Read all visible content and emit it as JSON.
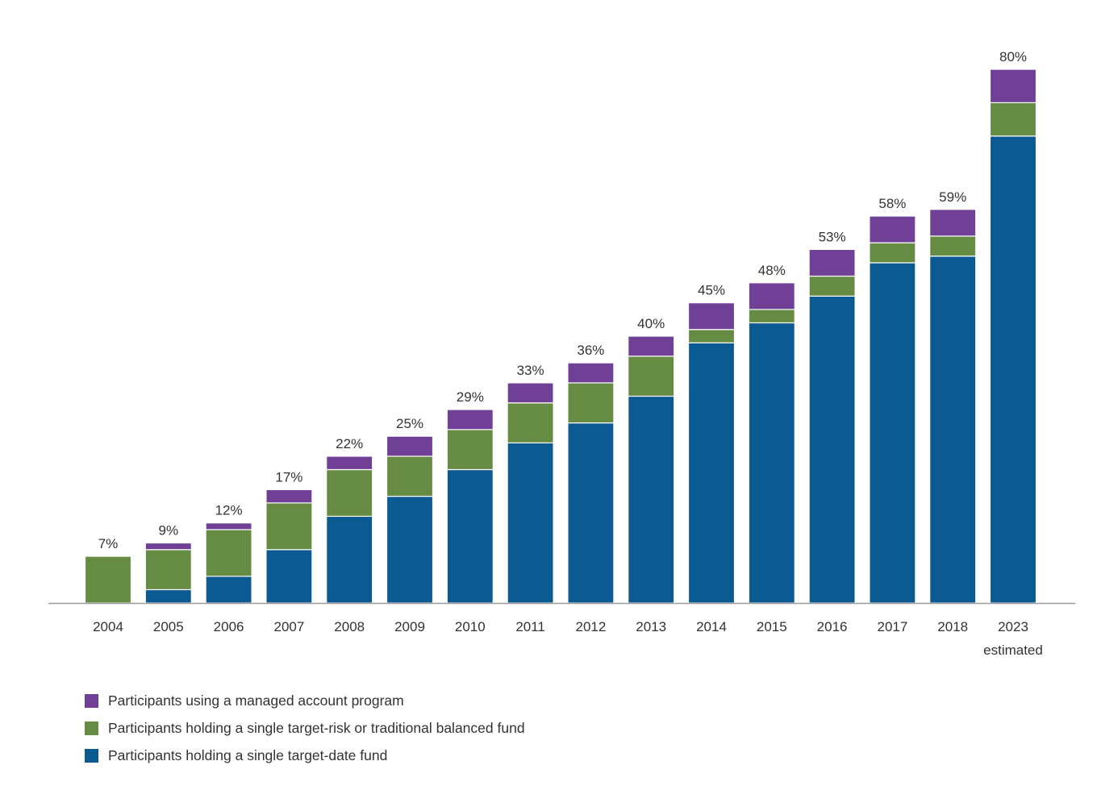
{
  "chart_data": {
    "type": "bar",
    "stacked": true,
    "categories": [
      "2004",
      "2005",
      "2006",
      "2007",
      "2008",
      "2009",
      "2010",
      "2011",
      "2012",
      "2013",
      "2014",
      "2015",
      "2016",
      "2017",
      "2018",
      "2023"
    ],
    "category_sublabels": [
      "",
      "",
      "",
      "",
      "",
      "",
      "",
      "",
      "",
      "",
      "",
      "",
      "",
      "",
      "",
      "estimated"
    ],
    "totals": [
      7,
      9,
      12,
      17,
      22,
      25,
      29,
      33,
      36,
      40,
      45,
      48,
      53,
      58,
      59,
      80
    ],
    "total_labels": [
      "7%",
      "9%",
      "12%",
      "17%",
      "22%",
      "25%",
      "29%",
      "33%",
      "36%",
      "40%",
      "45%",
      "48%",
      "53%",
      "58%",
      "59%",
      "80%"
    ],
    "series": [
      {
        "name": "Participants holding a single target-date fund",
        "color": "#0b5a91",
        "values": [
          0,
          2,
          4,
          8,
          13,
          16,
          20,
          24,
          27,
          31,
          39,
          42,
          46,
          51,
          52,
          70
        ]
      },
      {
        "name": "Participants holding a single target-risk or traditional balanced fund",
        "color": "#668b43",
        "values": [
          7,
          6,
          7,
          7,
          7,
          6,
          6,
          6,
          6,
          6,
          2,
          2,
          3,
          3,
          3,
          5
        ]
      },
      {
        "name": "Participants using a managed account program",
        "color": "#703f96",
        "values": [
          0,
          1,
          1,
          2,
          2,
          3,
          3,
          3,
          3,
          3,
          4,
          4,
          4,
          4,
          4,
          5
        ]
      }
    ],
    "legend_order": [
      2,
      1,
      0
    ],
    "ylim": [
      0,
      80
    ],
    "grid": false,
    "legend_position": "bottom-left",
    "xlabel": "",
    "ylabel": "",
    "title": ""
  }
}
